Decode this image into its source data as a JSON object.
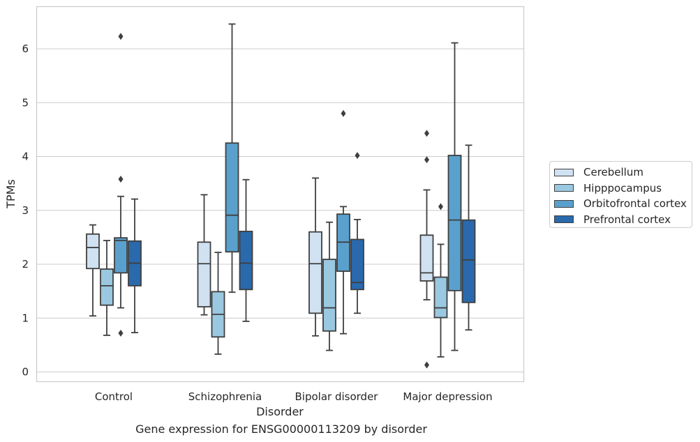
{
  "chart_data": {
    "type": "box",
    "title": "Gene expression for ENSG00000113209 by disorder",
    "xlabel": "Disorder",
    "ylabel": "TPMs",
    "ylim": [
      -0.18,
      6.75
    ],
    "yticks": [
      0,
      1,
      2,
      3,
      4,
      5,
      6
    ],
    "grid": "horizontal",
    "legend_position": "right",
    "categories": [
      "Control",
      "Schizophrenia",
      "Bipolar disorder",
      "Major depression"
    ],
    "series": [
      {
        "name": "Cerebellum",
        "color": "#d0e1f2",
        "boxes": [
          {
            "whisker_low": 1.04,
            "q1": 1.92,
            "median": 2.31,
            "q3": 2.56,
            "whisker_high": 2.73,
            "outliers": []
          },
          {
            "whisker_low": 1.06,
            "q1": 1.21,
            "median": 2.01,
            "q3": 2.41,
            "whisker_high": 3.29,
            "outliers": []
          },
          {
            "whisker_low": 0.67,
            "q1": 1.09,
            "median": 2.01,
            "q3": 2.6,
            "whisker_high": 3.6,
            "outliers": []
          },
          {
            "whisker_low": 1.34,
            "q1": 1.69,
            "median": 1.84,
            "q3": 2.54,
            "whisker_high": 3.38,
            "outliers": [
              4.43,
              3.94,
              0.13
            ]
          }
        ]
      },
      {
        "name": "Hipppocampus",
        "color": "#9ac8e0",
        "boxes": [
          {
            "whisker_low": 0.68,
            "q1": 1.24,
            "median": 1.6,
            "q3": 1.91,
            "whisker_high": 2.44,
            "outliers": []
          },
          {
            "whisker_low": 0.33,
            "q1": 0.65,
            "median": 1.07,
            "q3": 1.49,
            "whisker_high": 2.22,
            "outliers": []
          },
          {
            "whisker_low": 0.4,
            "q1": 0.76,
            "median": 1.19,
            "q3": 2.09,
            "whisker_high": 2.78,
            "outliers": []
          },
          {
            "whisker_low": 0.28,
            "q1": 1.01,
            "median": 1.19,
            "q3": 1.76,
            "whisker_high": 2.37,
            "outliers": [
              3.07
            ]
          }
        ]
      },
      {
        "name": "Orbitofrontal cortex",
        "color": "#5aa0cd",
        "boxes": [
          {
            "whisker_low": 1.19,
            "q1": 1.84,
            "median": 2.44,
            "q3": 2.49,
            "whisker_high": 3.26,
            "outliers": [
              6.23,
              3.58,
              0.72
            ]
          },
          {
            "whisker_low": 1.48,
            "q1": 2.23,
            "median": 2.91,
            "q3": 4.25,
            "whisker_high": 6.46,
            "outliers": []
          },
          {
            "whisker_low": 0.71,
            "q1": 1.87,
            "median": 2.41,
            "q3": 2.93,
            "whisker_high": 3.07,
            "outliers": [
              4.8
            ]
          },
          {
            "whisker_low": 0.4,
            "q1": 1.51,
            "median": 2.82,
            "q3": 4.02,
            "whisker_high": 6.11,
            "outliers": []
          }
        ]
      },
      {
        "name": "Prefrontal cortex",
        "color": "#2a69ac",
        "boxes": [
          {
            "whisker_low": 0.73,
            "q1": 1.6,
            "median": 2.02,
            "q3": 2.43,
            "whisker_high": 3.21,
            "outliers": []
          },
          {
            "whisker_low": 0.94,
            "q1": 1.53,
            "median": 2.02,
            "q3": 2.61,
            "whisker_high": 3.57,
            "outliers": []
          },
          {
            "whisker_low": 1.09,
            "q1": 1.53,
            "median": 1.66,
            "q3": 2.46,
            "whisker_high": 2.83,
            "outliers": [
              4.02
            ]
          },
          {
            "whisker_low": 0.78,
            "q1": 1.29,
            "median": 2.08,
            "q3": 2.82,
            "whisker_high": 4.21,
            "outliers": []
          }
        ]
      }
    ]
  }
}
